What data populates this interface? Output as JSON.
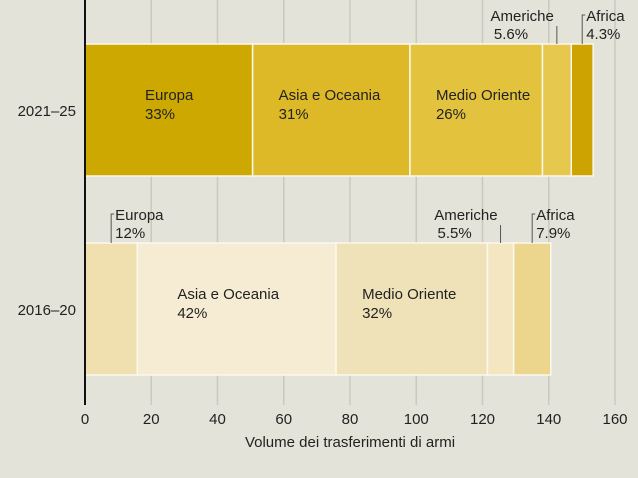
{
  "chart_data": {
    "type": "bar",
    "orientation": "horizontal",
    "stacked": true,
    "title": "",
    "xlabel": "Volume dei trasferimenti di armi",
    "ylabel": "",
    "xlim": [
      0,
      160
    ],
    "xticks": [
      0,
      20,
      40,
      60,
      80,
      100,
      120,
      140,
      160
    ],
    "grid": true,
    "categories": [
      "2021–25",
      "2016–20"
    ],
    "bars": [
      {
        "category": "2021–25",
        "segments": [
          {
            "region": "Europa",
            "pct": "33%",
            "value": 50.6,
            "color": "#cca800",
            "label_inside": true
          },
          {
            "region": "Asia e Oceania",
            "pct": "31%",
            "value": 47.5,
            "color": "#ddb928",
            "label_inside": true
          },
          {
            "region": "Medio Oriente",
            "pct": "26%",
            "value": 40.0,
            "color": "#e3c23e",
            "label_inside": true
          },
          {
            "region": "Americhe",
            "pct": "5.6%",
            "value": 8.7,
            "color": "#e6c84e",
            "label_inside": false
          },
          {
            "region": "Africa",
            "pct": "4.3%",
            "value": 6.6,
            "color": "#cca300",
            "label_inside": false
          }
        ]
      },
      {
        "category": "2016–20",
        "segments": [
          {
            "region": "Europa",
            "pct": "12%",
            "value": 15.8,
            "color": "#f0e0b0",
            "label_inside": false
          },
          {
            "region": "Asia e Oceania",
            "pct": "42%",
            "value": 60.0,
            "color": "#f6ecd4",
            "label_inside": true
          },
          {
            "region": "Medio Oriente",
            "pct": "32%",
            "value": 45.7,
            "color": "#f0e2b8",
            "label_inside": true
          },
          {
            "region": "Americhe",
            "pct": "5.5%",
            "value": 7.9,
            "color": "#f3e6c0",
            "label_inside": false
          },
          {
            "region": "Africa",
            "pct": "7.9%",
            "value": 11.2,
            "color": "#ecd68e",
            "label_inside": false
          }
        ]
      }
    ]
  }
}
